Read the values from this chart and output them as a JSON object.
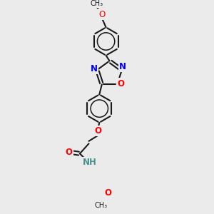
{
  "background_color": "#ebebeb",
  "line_color": "#1a1a1a",
  "bond_width": 1.5,
  "atom_colors": {
    "N": "#0000ff",
    "O": "#ff0000",
    "NH": "#4a9090",
    "C": "#1a1a1a"
  },
  "font_size": 8.5
}
